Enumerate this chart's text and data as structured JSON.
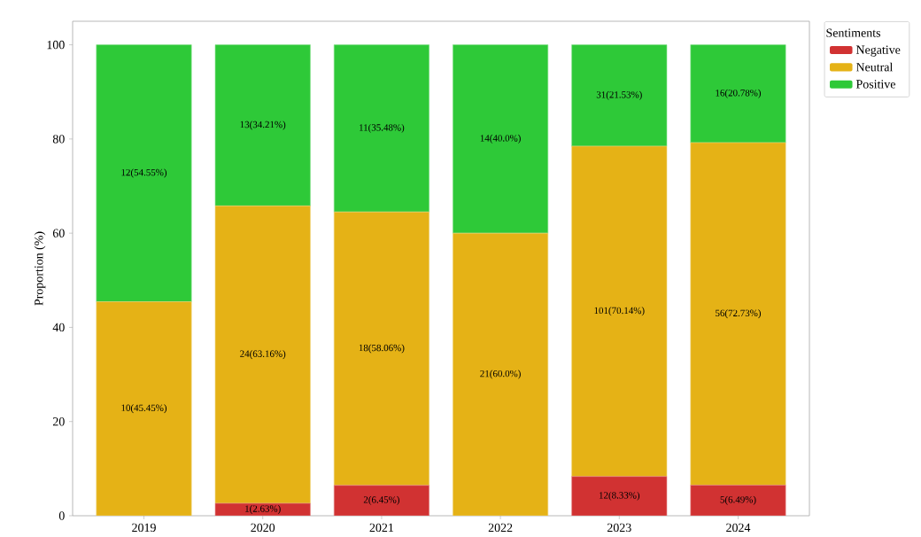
{
  "chart_data": {
    "type": "bar",
    "stacked": true,
    "ylabel": "Proportion (%)",
    "legend_title": "Sentiments",
    "legend": "top right",
    "categories": [
      "2019",
      "2020",
      "2021",
      "2022",
      "2023",
      "2024"
    ],
    "ylim": [
      0,
      105
    ],
    "yticks": [
      0,
      20,
      40,
      60,
      80,
      100
    ],
    "series": [
      {
        "name": "Negative",
        "color": "#d13232",
        "values": [
          0,
          2.63,
          6.45,
          0,
          8.33,
          6.49
        ],
        "value_labels": [
          null,
          "1(2.63%)",
          "2(6.45%)",
          null,
          "12(8.33%)",
          "5(6.49%)"
        ]
      },
      {
        "name": "Neutral",
        "color": "#e5b216",
        "values": [
          45.45,
          63.16,
          58.06,
          60.0,
          70.14,
          72.73
        ],
        "value_labels": [
          "10(45.45%)",
          "24(63.16%)",
          "18(58.06%)",
          "21(60.0%)",
          "101(70.14%)",
          "56(72.73%)"
        ]
      },
      {
        "name": "Positive",
        "color": "#2ec938",
        "values": [
          54.55,
          34.21,
          35.48,
          40.0,
          21.53,
          20.78
        ],
        "value_labels": [
          "12(54.55%)",
          "13(34.21%)",
          "11(35.48%)",
          "14(40.0%)",
          "31(21.53%)",
          "16(20.78%)"
        ]
      }
    ]
  }
}
